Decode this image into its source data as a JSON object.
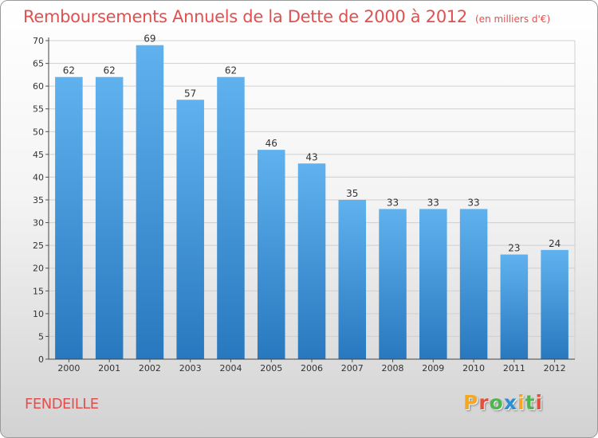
{
  "chart_data": {
    "type": "bar",
    "title": "Remboursements Annuels de la Dette de 2000 à 2012",
    "subtitle": "(en milliers d'€)",
    "categories": [
      "2000",
      "2001",
      "2002",
      "2003",
      "2004",
      "2005",
      "2006",
      "2007",
      "2008",
      "2009",
      "2010",
      "2011",
      "2012"
    ],
    "values": [
      62,
      62,
      69,
      57,
      62,
      46,
      43,
      35,
      33,
      33,
      33,
      23,
      24
    ],
    "ylim": [
      0,
      70
    ],
    "yticks": [
      0,
      5,
      10,
      15,
      20,
      25,
      30,
      35,
      40,
      45,
      50,
      55,
      60,
      65,
      70
    ],
    "grid": true,
    "bar_color": "#4a9fe0",
    "title_color": "#e0504f"
  },
  "commune": "FENDEILLE",
  "logo": {
    "text": "Proxiti",
    "letter_colors": [
      "#f5a623",
      "#e94e3c",
      "#4ab84a",
      "#2b8fd6",
      "#f5a623",
      "#4ab84a",
      "#e94e3c"
    ]
  }
}
